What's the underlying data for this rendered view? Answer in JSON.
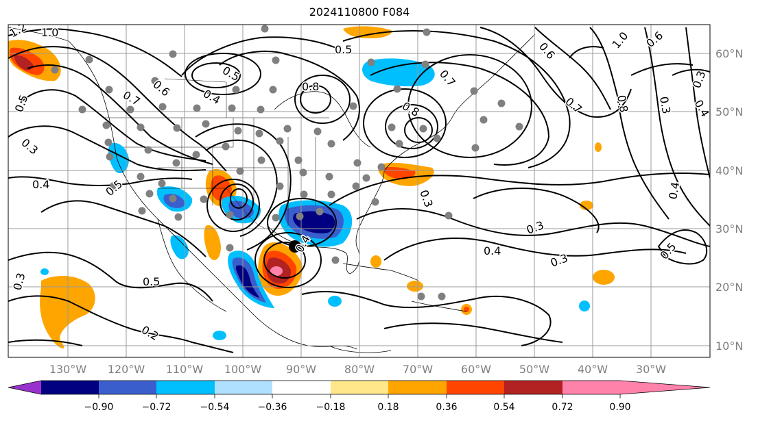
{
  "title": "2024110800 F084",
  "lon_labels": [
    "130°W",
    "120°W",
    "110°W",
    "100°W",
    "90°W",
    "80°W",
    "70°W",
    "60°W",
    "50°W",
    "40°W",
    "30°W"
  ],
  "lat_labels": [
    "60°N",
    "50°N",
    "40°N",
    "30°N",
    "20°N",
    "10°N"
  ],
  "contour_labels": [
    "1.2",
    "1.0",
    "0.5",
    "0.4",
    "0.3",
    "0.7",
    "0.5",
    "0.8",
    "0.5",
    "0.7",
    "0.8",
    "0.6",
    "0.4",
    "0.3",
    "0.4",
    "0.3",
    "0.4",
    "0.3",
    "0.5",
    "0.5",
    "0.2",
    "0.3",
    "0.7",
    "1.0",
    "0.6",
    "0.8",
    "0.3",
    "0.4",
    "0.3",
    "0.5",
    "0.4",
    "0.6"
  ],
  "colorbar": {
    "ticks": [
      "−0.90",
      "−0.72",
      "−0.54",
      "−0.36",
      "−0.18",
      "0.18",
      "0.36",
      "0.54",
      "0.72",
      "0.90"
    ],
    "colors": [
      "#9932cc",
      "#000080",
      "#3a5fcd",
      "#00bfff",
      "#b0e0ff",
      "#ffffff",
      "#ffe78a",
      "#ffa500",
      "#ff4500",
      "#b22222",
      "#ff82ab"
    ]
  },
  "storm_marker": "black-dot"
}
